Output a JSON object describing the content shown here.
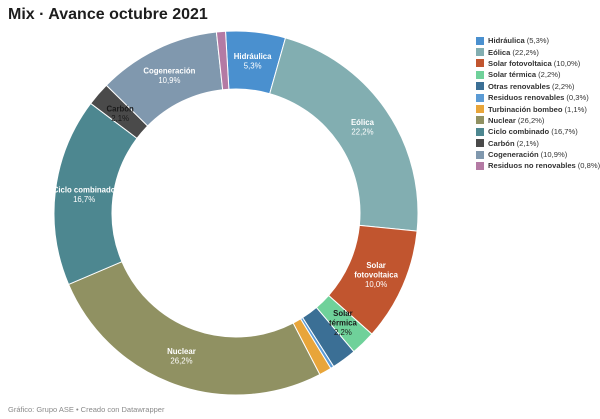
{
  "title": "Mix · Avance octubre 2021",
  "footer": "Gráfico: Grupo ASE • Creado con Datawrapper",
  "chart_data": {
    "type": "pie",
    "title": "Mix · Avance octubre 2021",
    "legend_position": "right",
    "slices": [
      {
        "name": "Hidráulica",
        "value": 5.3,
        "label": "5,3%",
        "color": "#4a90cf",
        "text_color": "#ffffff"
      },
      {
        "name": "Eólica",
        "value": 22.2,
        "label": "22,2%",
        "color": "#82aeb1",
        "text_color": "#ffffff"
      },
      {
        "name": "Solar fotovoltaica",
        "value": 10.0,
        "label": "10,0%",
        "color": "#c1552f",
        "text_color": "#ffffff"
      },
      {
        "name": "Solar térmica",
        "value": 2.2,
        "label": "2,2%",
        "color": "#6fd19a",
        "text_color": "#1a1a1a"
      },
      {
        "name": "Otras renovables",
        "value": 2.2,
        "label": "2,2%",
        "color": "#3b6f95",
        "text_color": "#ffffff"
      },
      {
        "name": "Residuos renovables",
        "value": 0.3,
        "label": "0,3%",
        "color": "#5b9bd5",
        "text_color": "#ffffff"
      },
      {
        "name": "Turbinación bombeo",
        "value": 1.1,
        "label": "1,1%",
        "color": "#e8a53a",
        "text_color": "#ffffff"
      },
      {
        "name": "Nuclear",
        "value": 26.2,
        "label": "26,2%",
        "color": "#909162",
        "text_color": "#ffffff"
      },
      {
        "name": "Ciclo combinado",
        "value": 16.7,
        "label": "16,7%",
        "color": "#4d8790",
        "text_color": "#ffffff"
      },
      {
        "name": "Carbón",
        "value": 2.1,
        "label": "2,1%",
        "color": "#4a4a4a",
        "text_color": "#1a1a1a"
      },
      {
        "name": "Cogeneración",
        "value": 10.9,
        "label": "10,9%",
        "color": "#8098ae",
        "text_color": "#ffffff"
      },
      {
        "name": "Residuos no renovables",
        "value": 0.8,
        "label": "0,8%",
        "color": "#b47aa4",
        "text_color": "#ffffff"
      }
    ],
    "in_chart_labels": [
      "Hidráulica",
      "Eólica",
      "Solar fotovoltaica",
      "Solar térmica",
      "Nuclear",
      "Ciclo combinado",
      "Carbón",
      "Cogeneración"
    ]
  }
}
